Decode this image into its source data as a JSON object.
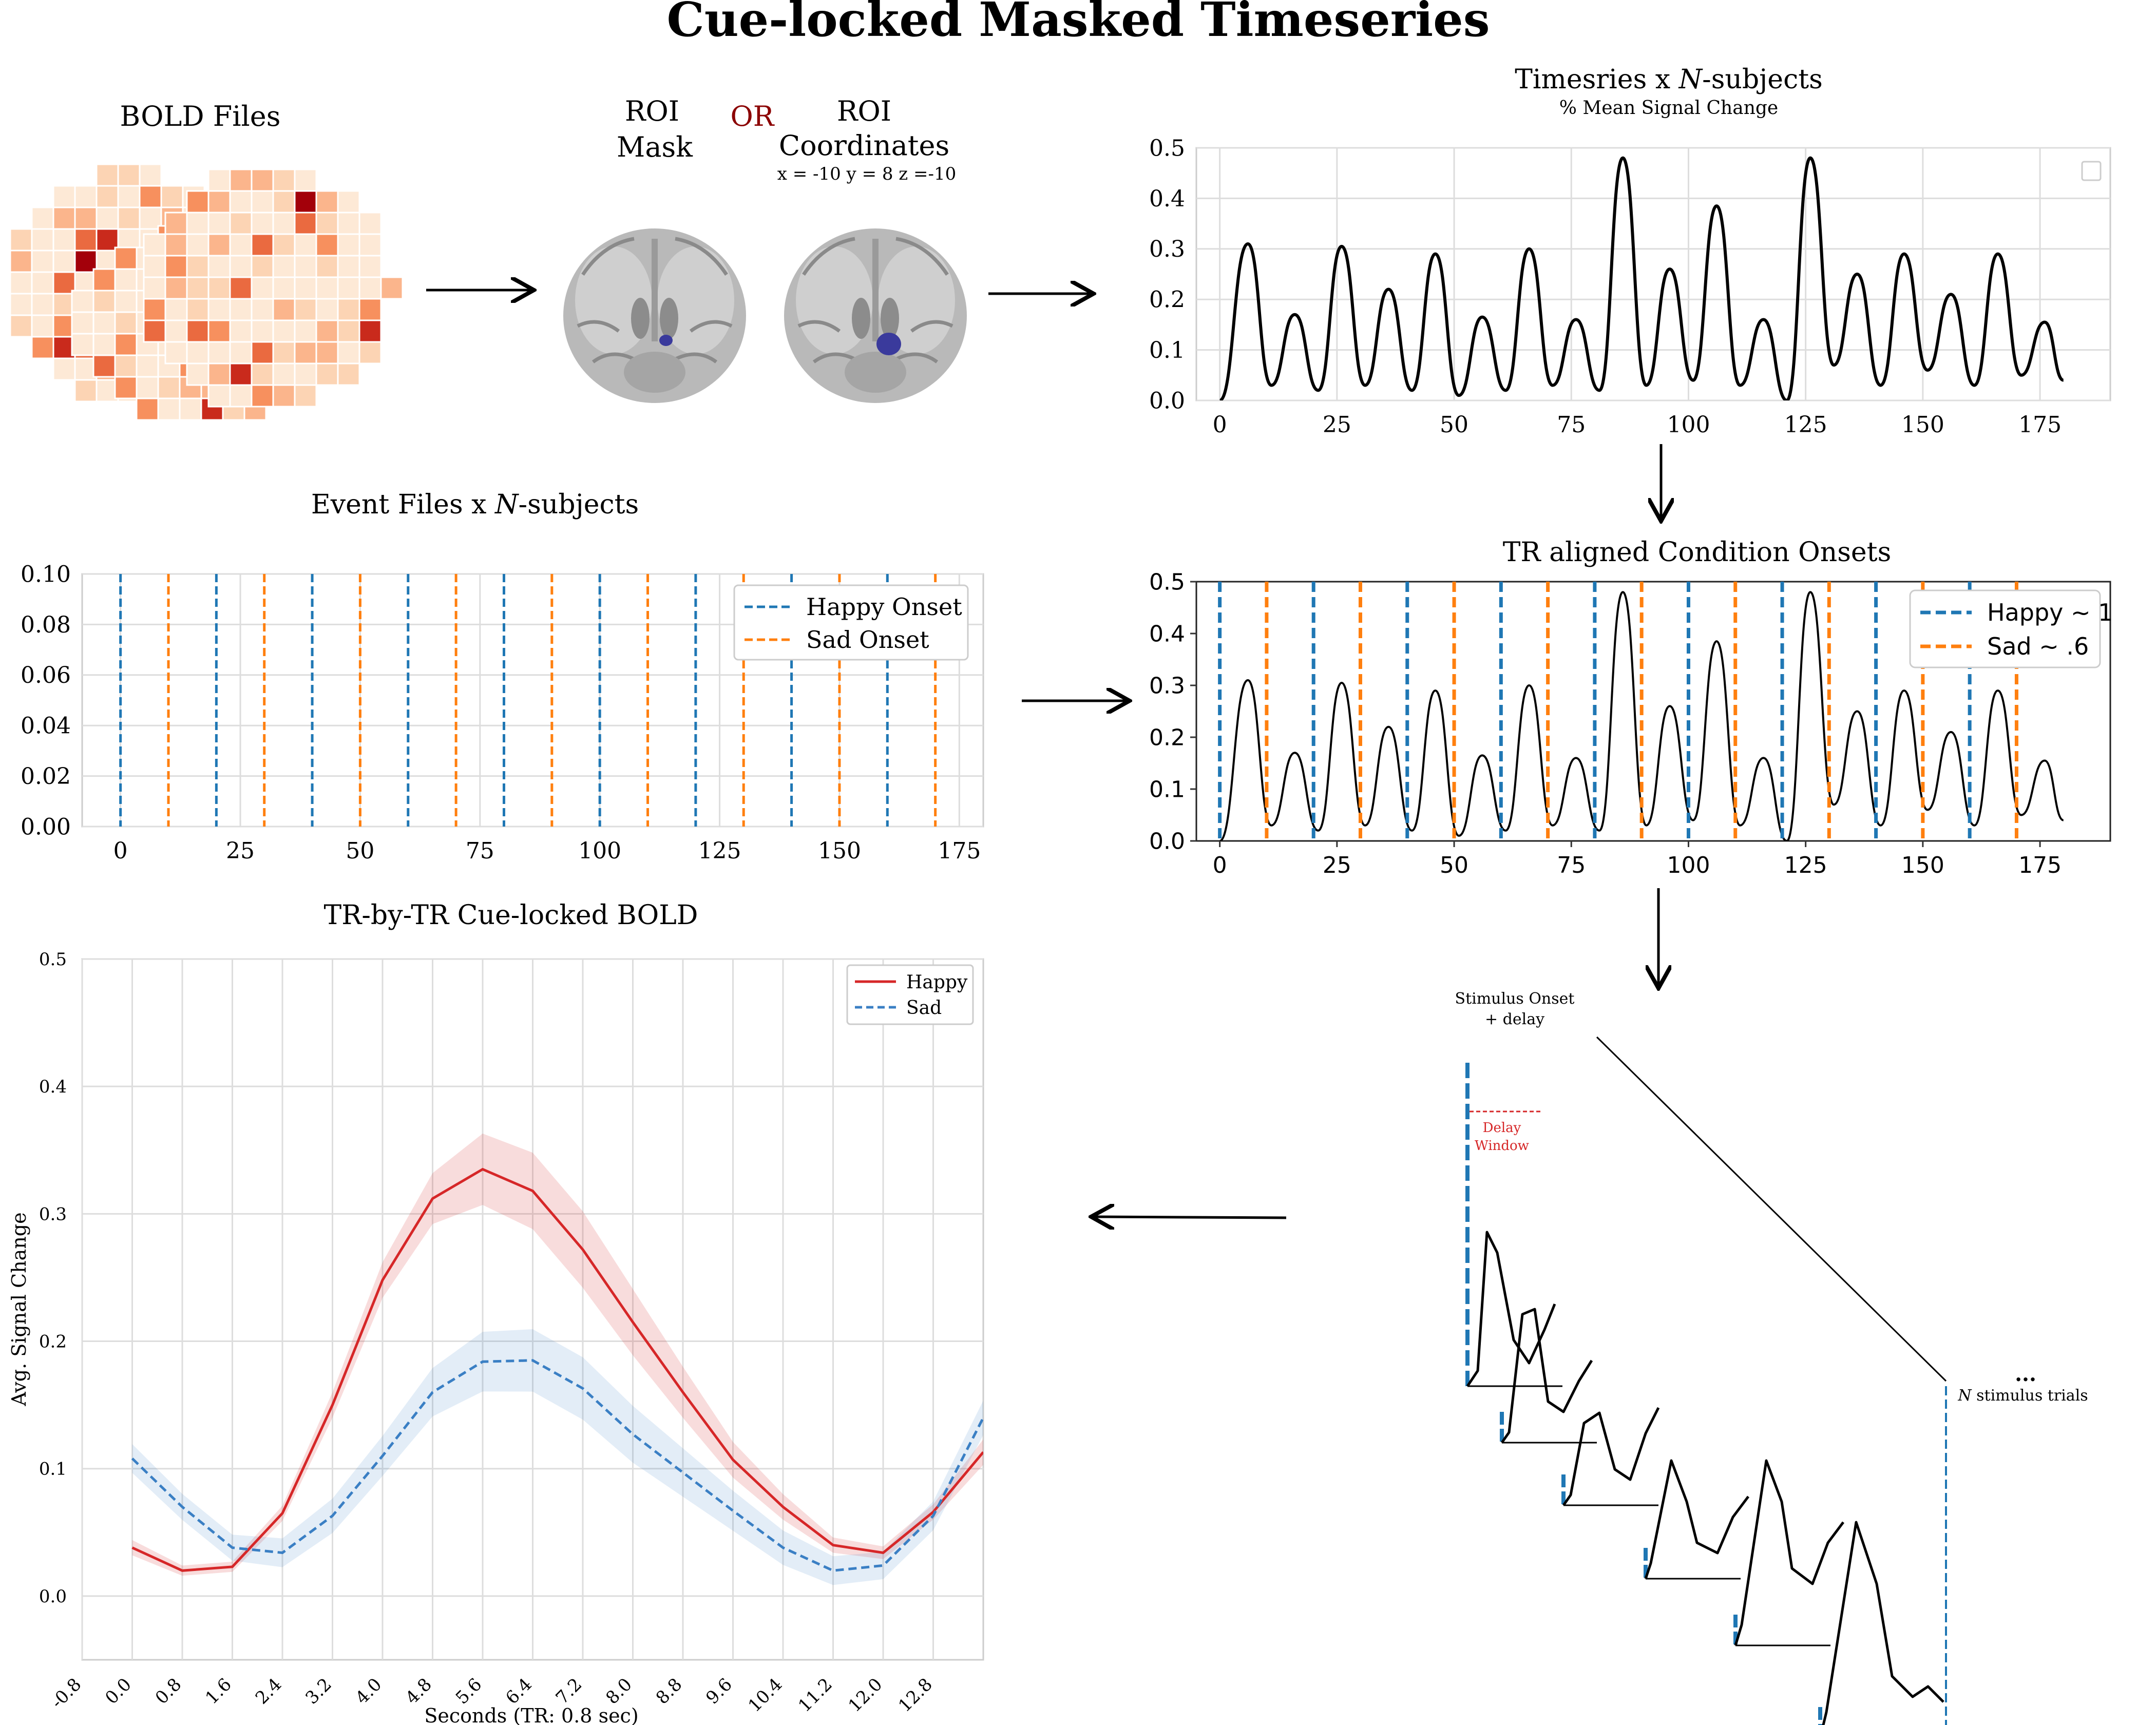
{
  "title": "Cue-locked Masked Timeseries",
  "bold": {
    "label": "BOLD Files"
  },
  "roi": {
    "mask_label_1": "ROI",
    "mask_label_2": "Mask",
    "or_label": "OR",
    "coords_label_1": "ROI",
    "coords_label_2": "Coordinates",
    "coords_values": "x = -10 y = 8 z =-10"
  },
  "colors": {
    "happy_blue": "#1f77b4",
    "sad_orange": "#ff7f0e",
    "happy_red": "#d62728",
    "sad_blue": "#3a7fc4",
    "or_red": "#8b0000",
    "roi_blob": "#3a3a9c"
  },
  "panels": {
    "timeseries": {
      "title_prefix": "Timesries x ",
      "title_italic": "N",
      "title_suffix": "-subjects",
      "subtitle": "% Mean Signal Change"
    },
    "events": {
      "title_prefix": "Event Files x ",
      "title_italic": "N",
      "title_suffix": "-subjects"
    },
    "aligned": {
      "title": "TR aligned Condition Onsets"
    },
    "cuelocked": {
      "title": "TR-by-TR Cue-locked BOLD"
    },
    "trials": {
      "onset_label_1": "Stimulus Onset",
      "onset_label_2": "+ delay",
      "delay_label_1": "Delay",
      "delay_label_2": "Window",
      "ellipsis": "...",
      "n_label_italic": "N",
      "n_label_rest": " stimulus trials"
    }
  },
  "chart_data": [
    {
      "id": "timeseries",
      "type": "line",
      "x_ticks": [
        0,
        25,
        50,
        75,
        100,
        125,
        150,
        175
      ],
      "y_ticks": [
        "0.0",
        "0.1",
        "0.2",
        "0.3",
        "0.4",
        "0.5"
      ],
      "xlim": [
        -5,
        190
      ],
      "ylim": [
        0,
        0.5
      ],
      "grid": true,
      "series": [
        {
          "x": [
            0,
            6,
            11,
            16,
            21,
            26,
            31,
            36,
            41,
            46,
            51,
            56,
            61,
            66,
            71,
            76,
            81,
            86,
            91,
            96,
            101,
            106,
            111,
            116,
            121,
            126,
            131,
            136,
            141,
            146,
            151,
            156,
            161,
            166,
            171,
            176,
            180
          ],
          "y": [
            0.0,
            0.31,
            0.03,
            0.17,
            0.02,
            0.305,
            0.03,
            0.22,
            0.02,
            0.29,
            0.01,
            0.165,
            0.02,
            0.3,
            0.03,
            0.16,
            0.02,
            0.48,
            0.03,
            0.26,
            0.04,
            0.385,
            0.03,
            0.16,
            0.0,
            0.48,
            0.07,
            0.25,
            0.03,
            0.29,
            0.06,
            0.21,
            0.03,
            0.29,
            0.05,
            0.155,
            0.04
          ]
        }
      ]
    },
    {
      "id": "events",
      "type": "line",
      "x_ticks": [
        0,
        25,
        50,
        75,
        100,
        125,
        150,
        175
      ],
      "y_ticks": [
        "0.00",
        "0.02",
        "0.04",
        "0.06",
        "0.08",
        "0.10"
      ],
      "xlim": [
        -8,
        180
      ],
      "ylim": [
        0,
        0.1
      ],
      "grid": true,
      "legend": "top-right",
      "series": [
        {
          "name": "Happy Onset",
          "onsets": [
            0,
            20,
            40,
            60,
            80,
            100,
            120,
            140,
            160
          ]
        },
        {
          "name": "Sad Onset",
          "onsets": [
            10,
            30,
            50,
            70,
            90,
            110,
            130,
            150,
            170
          ]
        }
      ]
    },
    {
      "id": "aligned",
      "type": "line",
      "x_ticks": [
        0,
        25,
        50,
        75,
        100,
        125,
        150,
        175
      ],
      "y_ticks": [
        "0.0",
        "0.1",
        "0.2",
        "0.3",
        "0.4",
        "0.5"
      ],
      "xlim": [
        -5,
        190
      ],
      "ylim": [
        0,
        0.5
      ],
      "legend": "top-right",
      "series": [
        {
          "name": "Happy ~ 1",
          "onsets": [
            0,
            20,
            40,
            60,
            80,
            100,
            120,
            140,
            160
          ]
        },
        {
          "name": "Sad ~ .6",
          "onsets": [
            10,
            30,
            50,
            70,
            90,
            110,
            130,
            150,
            170
          ]
        }
      ]
    },
    {
      "id": "cuelocked",
      "type": "line",
      "xlabel": "Seconds (TR: 0.8 sec)",
      "ylabel": "Avg. Signal Change",
      "x_ticks": [
        "-0.8",
        "0.0",
        "0.8",
        "1.6",
        "2.4",
        "3.2",
        "4.0",
        "4.8",
        "5.6",
        "6.4",
        "7.2",
        "8.0",
        "8.8",
        "9.6",
        "10.4",
        "11.2",
        "12.0",
        "12.8"
      ],
      "y_ticks": [
        "0.0",
        "0.1",
        "0.2",
        "0.3",
        "0.4",
        "0.5"
      ],
      "xlim": [
        -0.8,
        13.6
      ],
      "ylim": [
        -0.05,
        0.5
      ],
      "grid": true,
      "legend": "top-right",
      "x": [
        0.0,
        0.8,
        1.6,
        2.4,
        3.2,
        4.0,
        4.8,
        5.6,
        6.4,
        7.2,
        8.0,
        8.8,
        9.6,
        10.4,
        11.2,
        12.0,
        12.8,
        13.6
      ],
      "series": [
        {
          "name": "Happy",
          "values": [
            0.038,
            0.02,
            0.023,
            0.065,
            0.15,
            0.248,
            0.312,
            0.335,
            0.318,
            0.272,
            0.215,
            0.16,
            0.107,
            0.07,
            0.04,
            0.034,
            0.066,
            0.113
          ]
        },
        {
          "name": "Sad",
          "values": [
            0.108,
            0.07,
            0.038,
            0.034,
            0.063,
            0.11,
            0.16,
            0.184,
            0.185,
            0.163,
            0.127,
            0.097,
            0.067,
            0.038,
            0.02,
            0.024,
            0.063,
            0.14
          ]
        }
      ]
    }
  ]
}
